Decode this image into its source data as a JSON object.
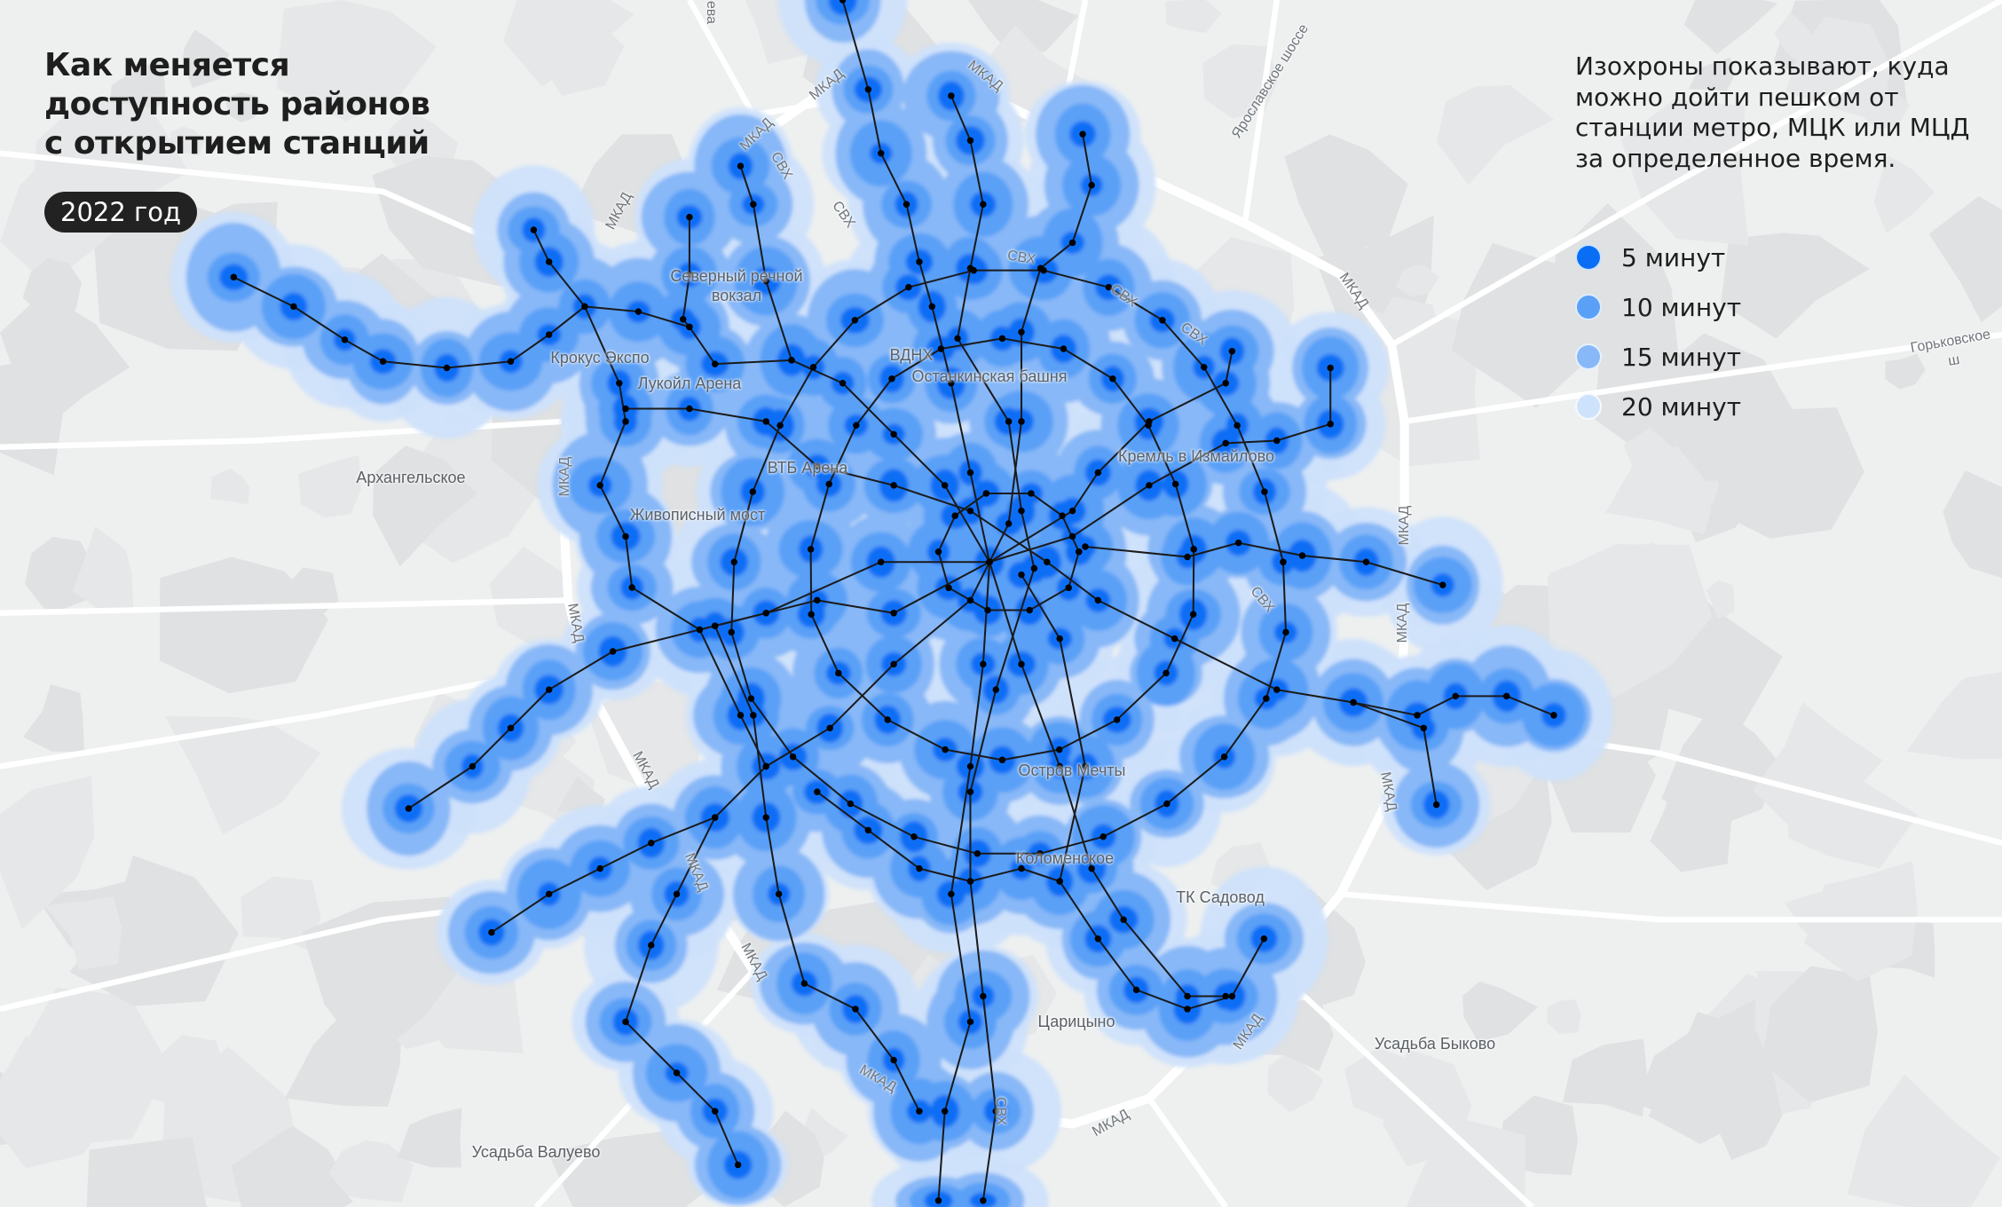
{
  "header": {
    "title_lines": [
      "Как меняется",
      "доступность районов",
      "с открытием станций"
    ],
    "year_badge": "2022 год"
  },
  "description": "Изохроны показывают, куда можно дойти пешком от станции метро, МЦК или МЦД за определенное время.",
  "legend": {
    "items": [
      {
        "label": "5 минут",
        "color": "#0a6ef5"
      },
      {
        "label": "10 минут",
        "color": "#5aa0f7"
      },
      {
        "label": "15 минут",
        "color": "#88b8f7"
      },
      {
        "label": "20 минут",
        "color": "#cfe2fb"
      }
    ]
  },
  "map": {
    "background_color": "#eef0f0",
    "line_color": "#1a1a1a",
    "landmarks": [
      "Северный речной\nвокзал",
      "Крокус Экспо",
      "Лукойл Арена",
      "Останкинская башня",
      "ВДНХ",
      "ВТБ Арена",
      "Архангельское",
      "Живописный мост",
      "Кремль в Измайлово",
      "Остров Мечты",
      "Коломенское",
      "ТК Садовод",
      "Царицыно",
      "Усадьба Быково",
      "Усадьба Валуево"
    ],
    "roads": {
      "mkad": "МКАД",
      "svh": "СВХ",
      "yaroslavskoe": "Ярославское шоссе",
      "gorkovskoe": "Горьковское ш",
      "top_fragment": "ева"
    }
  }
}
